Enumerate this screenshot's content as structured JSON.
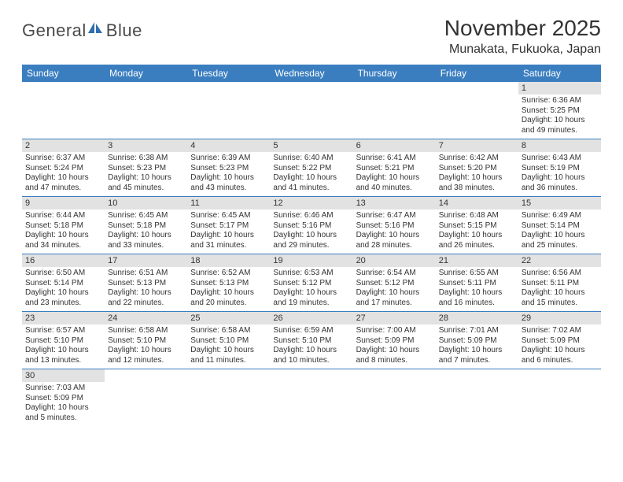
{
  "logo": {
    "word1": "General",
    "word2": "Blue"
  },
  "title": "November 2025",
  "location": "Munakata, Fukuoka, Japan",
  "colors": {
    "header_bar": "#3b7ec0",
    "daynum_bg": "#e2e2e2",
    "text": "#333333",
    "logo_blue": "#2f6fb0"
  },
  "dayHeaders": [
    "Sunday",
    "Monday",
    "Tuesday",
    "Wednesday",
    "Thursday",
    "Friday",
    "Saturday"
  ],
  "weeks": [
    [
      null,
      null,
      null,
      null,
      null,
      null,
      {
        "n": "1",
        "sr": "6:36 AM",
        "ss": "5:25 PM",
        "dl": "10 hours and 49 minutes."
      }
    ],
    [
      {
        "n": "2",
        "sr": "6:37 AM",
        "ss": "5:24 PM",
        "dl": "10 hours and 47 minutes."
      },
      {
        "n": "3",
        "sr": "6:38 AM",
        "ss": "5:23 PM",
        "dl": "10 hours and 45 minutes."
      },
      {
        "n": "4",
        "sr": "6:39 AM",
        "ss": "5:23 PM",
        "dl": "10 hours and 43 minutes."
      },
      {
        "n": "5",
        "sr": "6:40 AM",
        "ss": "5:22 PM",
        "dl": "10 hours and 41 minutes."
      },
      {
        "n": "6",
        "sr": "6:41 AM",
        "ss": "5:21 PM",
        "dl": "10 hours and 40 minutes."
      },
      {
        "n": "7",
        "sr": "6:42 AM",
        "ss": "5:20 PM",
        "dl": "10 hours and 38 minutes."
      },
      {
        "n": "8",
        "sr": "6:43 AM",
        "ss": "5:19 PM",
        "dl": "10 hours and 36 minutes."
      }
    ],
    [
      {
        "n": "9",
        "sr": "6:44 AM",
        "ss": "5:18 PM",
        "dl": "10 hours and 34 minutes."
      },
      {
        "n": "10",
        "sr": "6:45 AM",
        "ss": "5:18 PM",
        "dl": "10 hours and 33 minutes."
      },
      {
        "n": "11",
        "sr": "6:45 AM",
        "ss": "5:17 PM",
        "dl": "10 hours and 31 minutes."
      },
      {
        "n": "12",
        "sr": "6:46 AM",
        "ss": "5:16 PM",
        "dl": "10 hours and 29 minutes."
      },
      {
        "n": "13",
        "sr": "6:47 AM",
        "ss": "5:16 PM",
        "dl": "10 hours and 28 minutes."
      },
      {
        "n": "14",
        "sr": "6:48 AM",
        "ss": "5:15 PM",
        "dl": "10 hours and 26 minutes."
      },
      {
        "n": "15",
        "sr": "6:49 AM",
        "ss": "5:14 PM",
        "dl": "10 hours and 25 minutes."
      }
    ],
    [
      {
        "n": "16",
        "sr": "6:50 AM",
        "ss": "5:14 PM",
        "dl": "10 hours and 23 minutes."
      },
      {
        "n": "17",
        "sr": "6:51 AM",
        "ss": "5:13 PM",
        "dl": "10 hours and 22 minutes."
      },
      {
        "n": "18",
        "sr": "6:52 AM",
        "ss": "5:13 PM",
        "dl": "10 hours and 20 minutes."
      },
      {
        "n": "19",
        "sr": "6:53 AM",
        "ss": "5:12 PM",
        "dl": "10 hours and 19 minutes."
      },
      {
        "n": "20",
        "sr": "6:54 AM",
        "ss": "5:12 PM",
        "dl": "10 hours and 17 minutes."
      },
      {
        "n": "21",
        "sr": "6:55 AM",
        "ss": "5:11 PM",
        "dl": "10 hours and 16 minutes."
      },
      {
        "n": "22",
        "sr": "6:56 AM",
        "ss": "5:11 PM",
        "dl": "10 hours and 15 minutes."
      }
    ],
    [
      {
        "n": "23",
        "sr": "6:57 AM",
        "ss": "5:10 PM",
        "dl": "10 hours and 13 minutes."
      },
      {
        "n": "24",
        "sr": "6:58 AM",
        "ss": "5:10 PM",
        "dl": "10 hours and 12 minutes."
      },
      {
        "n": "25",
        "sr": "6:58 AM",
        "ss": "5:10 PM",
        "dl": "10 hours and 11 minutes."
      },
      {
        "n": "26",
        "sr": "6:59 AM",
        "ss": "5:10 PM",
        "dl": "10 hours and 10 minutes."
      },
      {
        "n": "27",
        "sr": "7:00 AM",
        "ss": "5:09 PM",
        "dl": "10 hours and 8 minutes."
      },
      {
        "n": "28",
        "sr": "7:01 AM",
        "ss": "5:09 PM",
        "dl": "10 hours and 7 minutes."
      },
      {
        "n": "29",
        "sr": "7:02 AM",
        "ss": "5:09 PM",
        "dl": "10 hours and 6 minutes."
      }
    ],
    [
      {
        "n": "30",
        "sr": "7:03 AM",
        "ss": "5:09 PM",
        "dl": "10 hours and 5 minutes."
      },
      null,
      null,
      null,
      null,
      null,
      null
    ]
  ],
  "labels": {
    "sunrise": "Sunrise:",
    "sunset": "Sunset:",
    "daylight": "Daylight:"
  }
}
